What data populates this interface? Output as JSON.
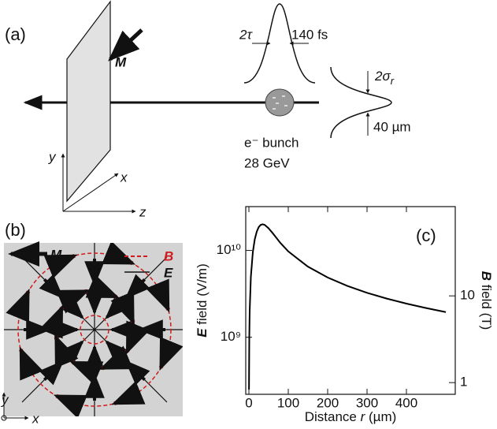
{
  "panel_a": {
    "label": "(a)",
    "magnetization": "M",
    "pulse_width_symbol": "2τ",
    "pulse_width": "140 fs",
    "beam_size_symbol": "2σ",
    "beam_size_subscript": "r",
    "beam_size": "40 µm",
    "bunch": "e⁻ bunch",
    "energy": "28 GeV",
    "axis_y": "y",
    "axis_x": "x",
    "axis_z": "z"
  },
  "panel_b": {
    "label": "(b)",
    "magnetization": "M",
    "legend_b": "B",
    "legend_e": "E",
    "axis_y": "y",
    "axis_x": "x"
  },
  "chart_data": {
    "type": "line",
    "annotation": "(c)",
    "xlabel_prefix": "Distance ",
    "xlabel_symbol": "r",
    "xlabel_unit": " (µm)",
    "ylabel_symbol": "E",
    "ylabel": " field  (V/m)",
    "y2label_symbol": "B",
    "y2label": " field  (T)",
    "x": [
      0.25,
      1,
      2,
      5,
      10,
      15,
      20,
      25,
      30,
      35,
      40,
      50,
      60,
      80,
      100,
      150,
      200,
      250,
      300,
      350,
      400,
      450,
      500
    ],
    "series": [
      {
        "color": "#000000",
        "values": [
          250000000,
          1000000000,
          2000000000,
          4970000000,
          9570000000,
          13500000000,
          16500000000,
          18600000000,
          19700000000,
          20000000000,
          19700000000,
          18000000000,
          15900000000,
          12200000000,
          9750000000,
          6500000000,
          4880000000,
          3900000000,
          3250000000,
          2790000000,
          2440000000,
          2170000000,
          1950000000
        ]
      }
    ],
    "xlim": [
      -8,
      524
    ],
    "xticks": [
      0,
      100,
      200,
      300,
      400
    ],
    "ylim": [
      220000000,
      32000000000
    ],
    "yticks": [
      {
        "value": 1000000000,
        "label": "10⁹"
      },
      {
        "value": 10000000000,
        "label": "10¹⁰"
      }
    ],
    "y2lim": [
      0.733,
      107
    ],
    "y2ticks": [
      1,
      10
    ],
    "log_y": true,
    "grid": false
  }
}
